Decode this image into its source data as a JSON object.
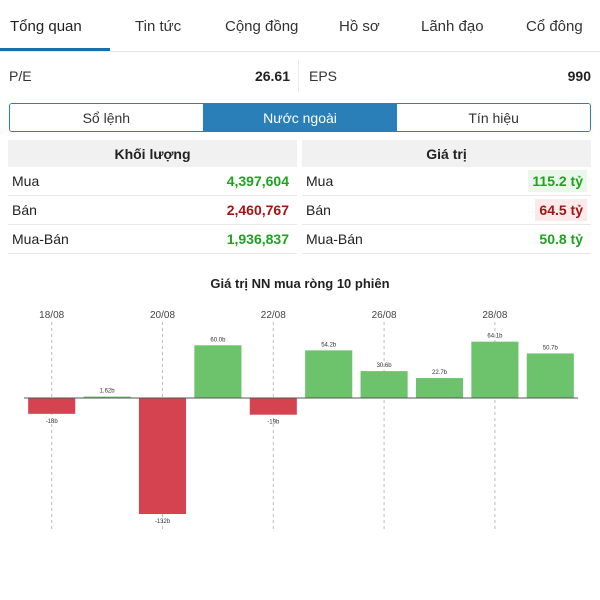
{
  "nav": {
    "tabs": [
      {
        "label": "Tổng quan",
        "active": true
      },
      {
        "label": "Tin tức",
        "active": false
      },
      {
        "label": "Cộng đồng",
        "active": false
      },
      {
        "label": "Hồ sơ",
        "active": false
      },
      {
        "label": "Lãnh đạo",
        "active": false
      },
      {
        "label": "Cổ đông",
        "active": false
      }
    ]
  },
  "ratios": {
    "pe_label": "P/E",
    "pe_value": "26.61",
    "eps_label": "EPS",
    "eps_value": "990"
  },
  "segments": [
    {
      "label": "Sổ lệnh",
      "active": false
    },
    {
      "label": "Nước ngoài",
      "active": true
    },
    {
      "label": "Tín hiệu",
      "active": false
    }
  ],
  "volume": {
    "header": "Khối lượng",
    "rows": [
      {
        "label": "Mua",
        "value": "4,397,604",
        "tone": "green"
      },
      {
        "label": "Bán",
        "value": "2,460,767",
        "tone": "red"
      },
      {
        "label": "Mua-Bán",
        "value": "1,936,837",
        "tone": "green"
      }
    ]
  },
  "value": {
    "header": "Giá trị",
    "rows": [
      {
        "label": "Mua",
        "value": "115.2 tỷ",
        "tone": "green",
        "highlight": true
      },
      {
        "label": "Bán",
        "value": "64.5 tỷ",
        "tone": "red",
        "highlight": true
      },
      {
        "label": "Mua-Bán",
        "value": "50.8 tỷ",
        "tone": "green",
        "highlight": false
      }
    ]
  },
  "chart_title": "Giá trị NN mua ròng 10 phiên",
  "chart_data": {
    "type": "bar",
    "title": "Giá trị NN mua ròng 10 phiên",
    "values": [
      -18,
      1.62,
      -132,
      60,
      -19,
      54.2,
      30.6,
      22.7,
      64.1,
      50.7
    ],
    "value_labels": [
      "-18b",
      "1.62b",
      "-132b",
      "60.0b",
      "-19b",
      "54.2b",
      "30.6b",
      "22.7b",
      "64.1b",
      "50.7b"
    ],
    "date_ticks": [
      {
        "bar": 0,
        "label": "18/08"
      },
      {
        "bar": 2,
        "label": "20/08"
      },
      {
        "bar": 4,
        "label": "22/08"
      },
      {
        "bar": 6,
        "label": "26/08"
      },
      {
        "bar": 8,
        "label": "28/08"
      }
    ],
    "positive_color": "#6cc36c",
    "negative_color": "#d4434f",
    "ylim": [
      -132,
      64.1
    ],
    "grid": false
  }
}
